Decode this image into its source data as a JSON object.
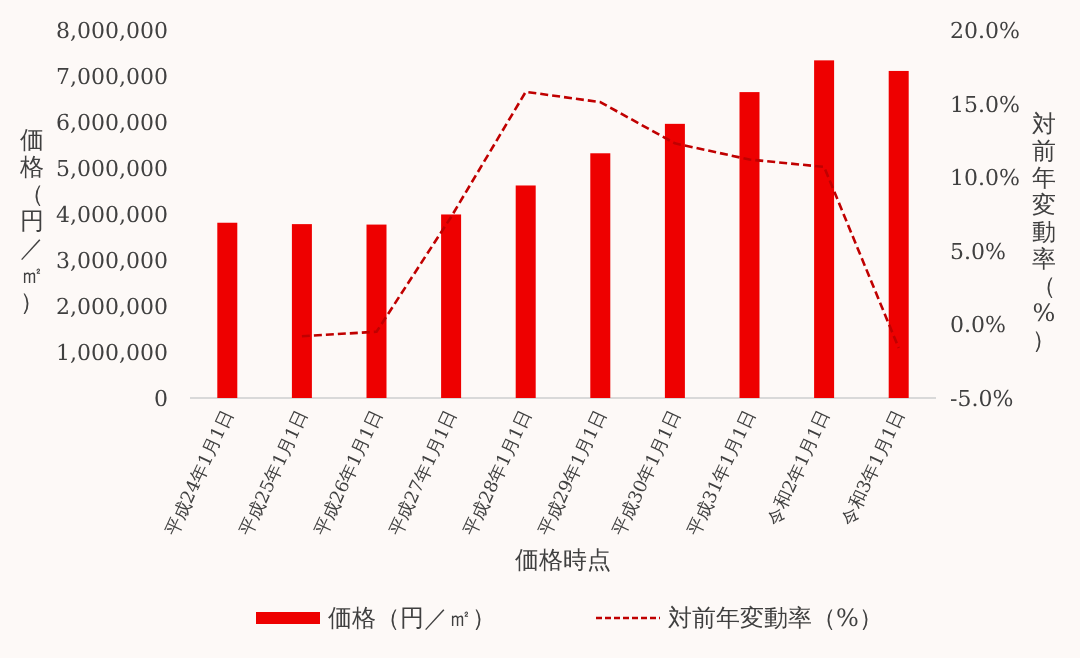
{
  "chart_data": {
    "type": "bar",
    "xlabel": "価格時点",
    "ylabel": "価格（円／㎡）",
    "y2label": "対前年変動率（%）",
    "categories": [
      "平成24年1月1日",
      "平成25年1月1日",
      "平成26年1月1日",
      "平成27年1月1日",
      "平成28年1月1日",
      "平成29年1月1日",
      "平成30年1月1日",
      "平成31年1月1日",
      "令和2年1月1日",
      "令和3年1月1日"
    ],
    "series": [
      {
        "name": "価格（円／㎡）",
        "color": "#ee0000",
        "values": [
          3810000,
          3780000,
          3770000,
          3990000,
          4620000,
          5320000,
          5960000,
          6650000,
          7340000,
          7110000
        ]
      },
      {
        "name": "対前年変動率（%）",
        "type": "line",
        "axis": "y2",
        "color": "#c00000",
        "line_style": "dashed",
        "marker": "none",
        "values": [
          null,
          -0.8,
          -0.5,
          7.3,
          15.8,
          15.1,
          12.3,
          11.2,
          10.7,
          -1.6
        ]
      }
    ],
    "ylim": [
      0,
      8000000
    ],
    "yticks": [
      {
        "value": 0,
        "label": "0"
      },
      {
        "value": 1000000,
        "label": "1,000,000"
      },
      {
        "value": 2000000,
        "label": "2,000,000"
      },
      {
        "value": 3000000,
        "label": "3,000,000"
      },
      {
        "value": 4000000,
        "label": "4,000,000"
      },
      {
        "value": 5000000,
        "label": "5,000,000"
      },
      {
        "value": 6000000,
        "label": "6,000,000"
      },
      {
        "value": 7000000,
        "label": "7,000,000"
      },
      {
        "value": 8000000,
        "label": "8,000,000"
      }
    ],
    "y2lim": [
      -5,
      20
    ],
    "y2ticks": [
      {
        "value": -5,
        "label": "-5.0%"
      },
      {
        "value": 0,
        "label": "0.0%"
      },
      {
        "value": 5,
        "label": "5.0%"
      },
      {
        "value": 10,
        "label": "10.0%"
      },
      {
        "value": 15,
        "label": "15.0%"
      },
      {
        "value": 20,
        "label": "20.0%"
      }
    ],
    "grid": false,
    "legend": "bottom"
  }
}
